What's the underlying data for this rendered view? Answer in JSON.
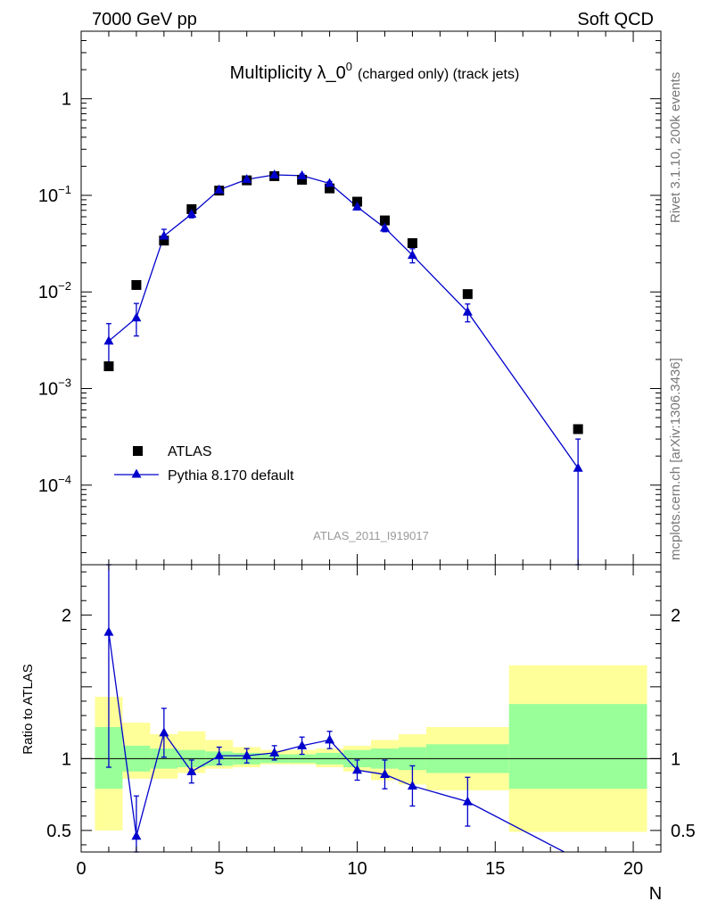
{
  "header": {
    "left": "7000 GeV pp",
    "right": "Soft QCD",
    "title_main": "Multiplicity λ_0",
    "title_sup": "0",
    "title_small": "(charged only) (track jets)"
  },
  "side_labels": {
    "rivet": "Rivet 3.1.10,  200k events",
    "mcplots": "mcplots.cern.ch [arXiv:1306.3436]"
  },
  "analysis_id": "ATLAS_2011_I919017",
  "legend": [
    {
      "label": "ATLAS"
    },
    {
      "label": "Pythia 8.170 default"
    }
  ],
  "colors": {
    "data": "#000000",
    "mc": "#0000cc",
    "band_inner": "#99ff99",
    "band_outer": "#ffff99"
  },
  "chart_data": [
    {
      "type": "scatter",
      "panel": "main",
      "y_scale": "log",
      "xlim": [
        0,
        21
      ],
      "ylim": [
        1.5e-05,
        5
      ],
      "y_ticks": [
        {
          "v": 1,
          "m": "1",
          "e": ""
        },
        {
          "v": 0.1,
          "m": "10",
          "e": "−1"
        },
        {
          "v": 0.01,
          "m": "10",
          "e": "−2"
        },
        {
          "v": 0.001,
          "m": "10",
          "e": "−3"
        },
        {
          "v": 0.0001,
          "m": "10",
          "e": "−4"
        }
      ],
      "series": [
        {
          "name": "ATLAS",
          "marker": "square",
          "x": [
            1,
            2,
            3,
            4,
            5,
            6,
            7,
            8,
            9,
            10,
            11,
            12,
            14,
            18
          ],
          "y": [
            0.0017,
            0.0118,
            0.034,
            0.072,
            0.112,
            0.143,
            0.158,
            0.145,
            0.118,
            0.086,
            0.055,
            0.032,
            0.0095,
            0.00038
          ]
        },
        {
          "name": "Pythia 8.170 default",
          "marker": "triangle",
          "x": [
            1,
            2,
            3,
            4,
            5,
            6,
            7,
            8,
            9,
            10,
            11,
            12,
            14,
            18
          ],
          "y": [
            0.0031,
            0.0054,
            0.038,
            0.064,
            0.114,
            0.146,
            0.163,
            0.16,
            0.133,
            0.076,
            0.046,
            0.024,
            0.0062,
            0.00015
          ],
          "err_lo": [
            0.0013,
            0.0019,
            0.0055,
            0.0055,
            0.006,
            0.006,
            0.006,
            0.006,
            0.006,
            0.0055,
            0.004,
            0.004,
            0.0013,
            0.00015
          ],
          "err_hi": [
            0.0016,
            0.0022,
            0.0065,
            0.0055,
            0.006,
            0.006,
            0.006,
            0.006,
            0.006,
            0.0055,
            0.004,
            0.004,
            0.0013,
            0.00015
          ]
        }
      ]
    },
    {
      "type": "line",
      "panel": "ratio",
      "ylabel": "Ratio to ATLAS",
      "xlabel": "N",
      "xlim": [
        0,
        21
      ],
      "ylim": [
        0.35,
        2.35
      ],
      "x_ticks": [
        0,
        5,
        10,
        15,
        20
      ],
      "y_ticks": [
        {
          "v": 0.5,
          "label": "0.5"
        },
        {
          "v": 1,
          "label": "1"
        },
        {
          "v": 2,
          "label": "2"
        }
      ],
      "bands": [
        {
          "x0": 0.5,
          "x1": 1.5,
          "inner": [
            0.79,
            1.22
          ],
          "outer": [
            0.5,
            1.43
          ]
        },
        {
          "x0": 1.5,
          "x1": 2.5,
          "inner": [
            0.91,
            1.09
          ],
          "outer": [
            0.86,
            1.25
          ]
        },
        {
          "x0": 2.5,
          "x1": 3.5,
          "inner": [
            0.93,
            1.07
          ],
          "outer": [
            0.86,
            1.17
          ]
        },
        {
          "x0": 3.5,
          "x1": 4.5,
          "inner": [
            0.94,
            1.06
          ],
          "outer": [
            0.9,
            1.19
          ]
        },
        {
          "x0": 4.5,
          "x1": 5.5,
          "inner": [
            0.95,
            1.05
          ],
          "outer": [
            0.93,
            1.13
          ]
        },
        {
          "x0": 5.5,
          "x1": 6.5,
          "inner": [
            0.96,
            1.04
          ],
          "outer": [
            0.94,
            1.08
          ]
        },
        {
          "x0": 6.5,
          "x1": 7.5,
          "inner": [
            0.97,
            1.03
          ],
          "outer": [
            0.96,
            1.06
          ]
        },
        {
          "x0": 7.5,
          "x1": 8.5,
          "inner": [
            0.97,
            1.03
          ],
          "outer": [
            0.96,
            1.06
          ]
        },
        {
          "x0": 8.5,
          "x1": 9.5,
          "inner": [
            0.96,
            1.04
          ],
          "outer": [
            0.94,
            1.07
          ]
        },
        {
          "x0": 9.5,
          "x1": 10.5,
          "inner": [
            0.94,
            1.06
          ],
          "outer": [
            0.91,
            1.09
          ]
        },
        {
          "x0": 10.5,
          "x1": 11.5,
          "inner": [
            0.93,
            1.07
          ],
          "outer": [
            0.85,
            1.13
          ]
        },
        {
          "x0": 11.5,
          "x1": 12.5,
          "inner": [
            0.92,
            1.08
          ],
          "outer": [
            0.82,
            1.17
          ]
        },
        {
          "x0": 12.5,
          "x1": 15.5,
          "inner": [
            0.9,
            1.1
          ],
          "outer": [
            0.78,
            1.22
          ]
        },
        {
          "x0": 15.5,
          "x1": 20.5,
          "inner": [
            0.79,
            1.38
          ],
          "outer": [
            0.49,
            1.65
          ]
        }
      ],
      "series": [
        {
          "name": "Pythia 8.170 default",
          "marker": "triangle",
          "x": [
            1,
            2,
            3,
            4,
            5,
            6,
            7,
            8,
            9,
            10,
            11,
            12,
            14,
            18
          ],
          "y": [
            1.88,
            0.46,
            1.18,
            0.91,
            1.02,
            1.02,
            1.04,
            1.09,
            1.13,
            0.92,
            0.89,
            0.81,
            0.7,
            0.3
          ],
          "err_lo": [
            0.94,
            0.28,
            0.17,
            0.08,
            0.06,
            0.05,
            0.05,
            0.06,
            0.06,
            0.07,
            0.1,
            0.14,
            0.17,
            0
          ],
          "err_hi": [
            0.94,
            0.28,
            0.17,
            0.08,
            0.06,
            0.05,
            0.05,
            0.06,
            0.06,
            0.07,
            0.1,
            0.14,
            0.17,
            0
          ]
        }
      ]
    }
  ]
}
